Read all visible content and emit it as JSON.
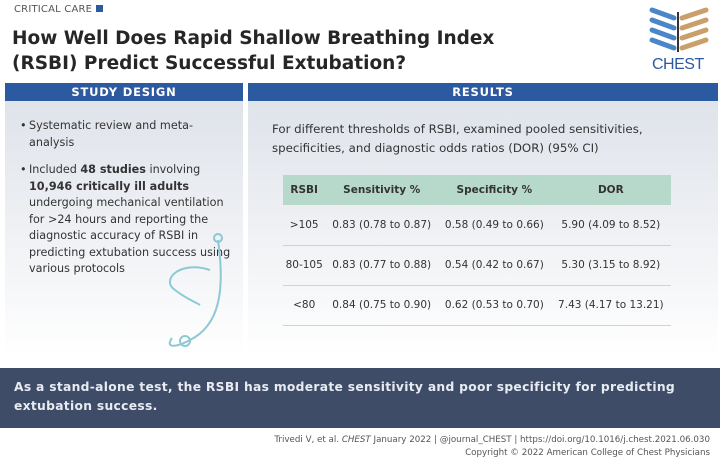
{
  "header": {
    "kicker": "CRITICAL CARE",
    "title_line1": "How Well Does Rapid Shallow Breathing Index",
    "title_line2": "(RSBI) Predict Successful Extubation?",
    "logo_text": "CHEST"
  },
  "study_design": {
    "heading": "STUDY DESIGN",
    "bullet1": "Systematic review and meta-analysis",
    "bullet2": {
      "t1": "Included ",
      "b1": "48 studies",
      "t2": " involving ",
      "b2": "10,946 critically ill adults",
      "t3": " undergoing mechanical ventilation for >24 hours and reporting the diagnostic accuracy of RSBI in predicting extubation success using various protocols"
    }
  },
  "results": {
    "heading": "RESULTS",
    "intro": "For different thresholds of RSBI, examined pooled sensitivities, specificities, and diagnostic odds ratios (DOR) (95% CI)",
    "columns": [
      "RSBI",
      "Sensitivity %",
      "Specificity %",
      "DOR"
    ],
    "rows": [
      [
        ">105",
        "0.83 (0.78 to 0.87)",
        "0.58 (0.49 to 0.66)",
        "5.90 (4.09 to 8.52)"
      ],
      [
        "80-105",
        "0.83 (0.77 to 0.88)",
        "0.54 (0.42 to 0.67)",
        "5.30 (3.15 to 8.92)"
      ],
      [
        "<80",
        "0.84 (0.75 to 0.90)",
        "0.62 (0.53 to 0.70)",
        "7.43 (4.17 to 13.21)"
      ]
    ]
  },
  "conclusion": "As a stand-alone test, the RSBI has moderate sensitivity and poor specificity for predicting extubation success.",
  "footer": {
    "citation_a": "Trivedi V, et al. ",
    "citation_journal": "CHEST",
    "citation_b": " January 2022  |  @journal_CHEST  |  https://doi.org/10.1016/j.chest.2021.06.030",
    "copyright": "Copyright © 2022 American College of Chest Physicians"
  },
  "colors": {
    "brand_blue": "#2c5aa0",
    "table_header": "#b7d9cc",
    "banner": "#3e4c68",
    "logo_gold": "#c9a06a"
  }
}
